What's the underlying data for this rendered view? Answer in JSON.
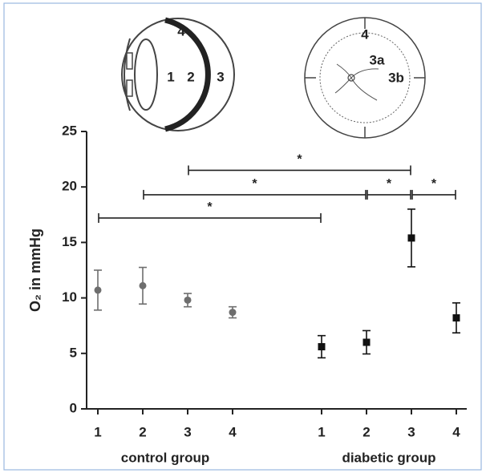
{
  "chart_data": {
    "type": "errorbar",
    "ylabel": "O₂ in mmHg",
    "categories": [
      "1",
      "2",
      "3",
      "4"
    ],
    "ylim": [
      0,
      25
    ],
    "yticks": [
      0,
      5,
      10,
      15,
      20,
      25
    ],
    "series": [
      {
        "name": "control group",
        "color": "#6e6e6e",
        "marker": "circle",
        "values": [
          10.7,
          11.1,
          9.8,
          8.7
        ],
        "errors": [
          1.8,
          1.65,
          0.6,
          0.5
        ]
      },
      {
        "name": "diabetic group",
        "color": "#111111",
        "marker": "square",
        "values": [
          5.6,
          6.0,
          15.4,
          8.2
        ],
        "errors": [
          1.0,
          1.05,
          2.6,
          1.35
        ]
      }
    ],
    "brackets": [
      {
        "from": [
          0,
          0
        ],
        "to": [
          1,
          0
        ],
        "y": 17.2,
        "label": "*"
      },
      {
        "from": [
          0,
          1
        ],
        "to": [
          1,
          1
        ],
        "y": 19.3,
        "label": "*"
      },
      {
        "from": [
          1,
          1
        ],
        "to": [
          1,
          2
        ],
        "y": 19.3,
        "label": "*"
      },
      {
        "from": [
          1,
          2
        ],
        "to": [
          1,
          3
        ],
        "y": 19.3,
        "label": "*"
      },
      {
        "from": [
          0,
          2
        ],
        "to": [
          1,
          2
        ],
        "y": 21.5,
        "label": "*"
      }
    ]
  },
  "diagrams": {
    "eye": [
      "4",
      "1",
      "2",
      "3"
    ],
    "fundus": [
      "4",
      "3a",
      "3b"
    ]
  }
}
